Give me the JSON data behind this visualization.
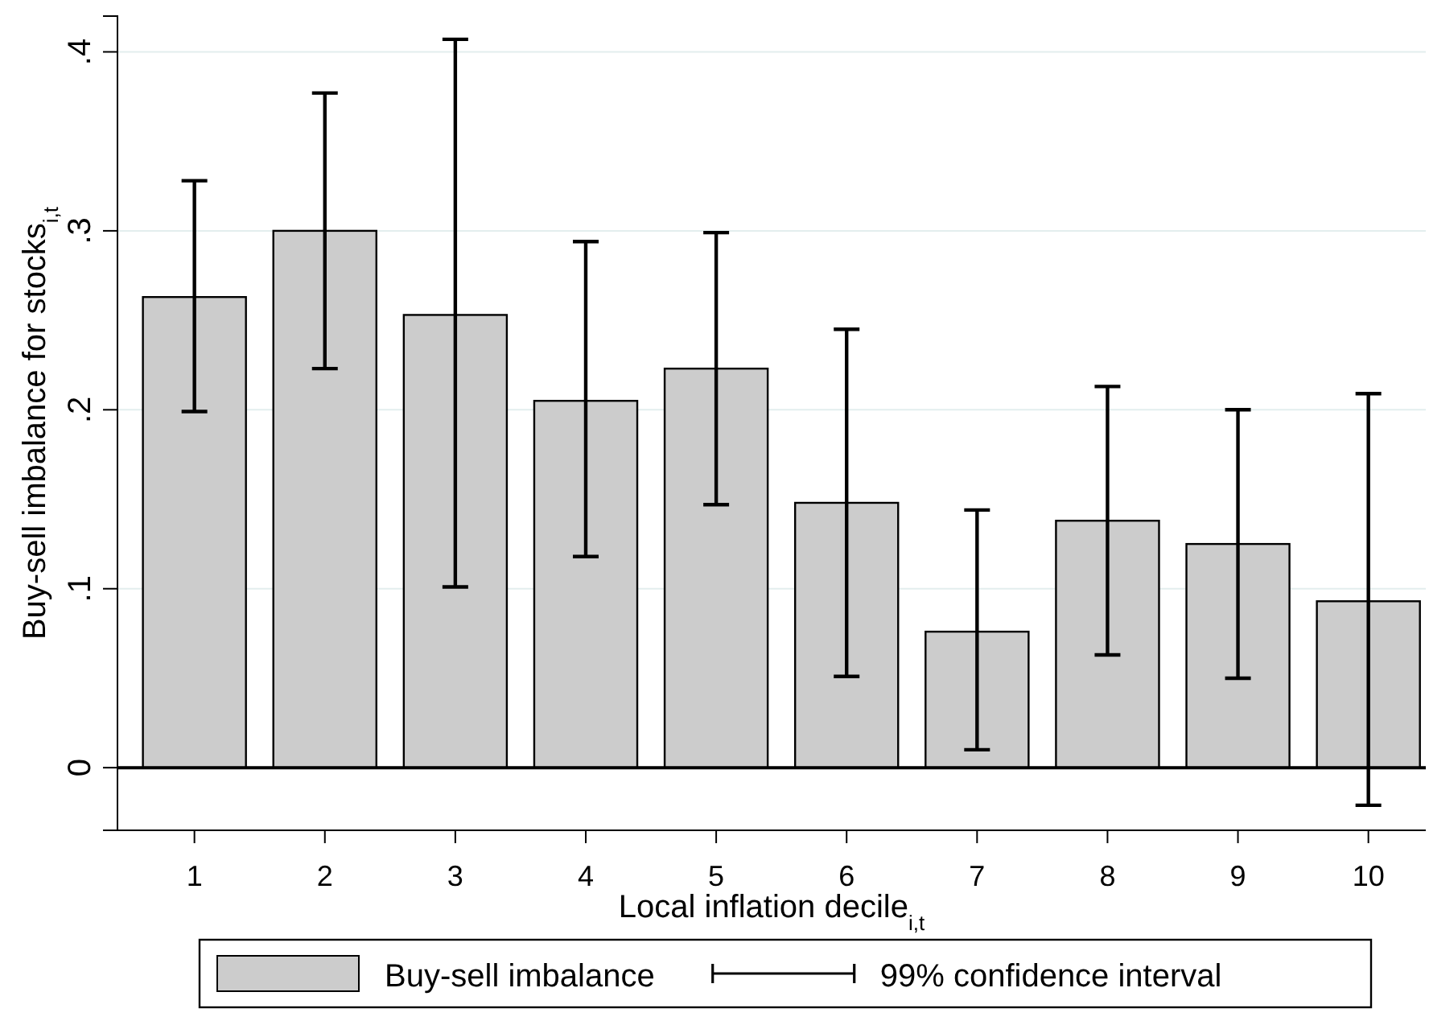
{
  "chart_data": {
    "type": "bar",
    "xlabel": "Local inflation decile$_{i,t}$",
    "ylabel": "Buy-sell imbalance for stocks$_{i,t}$",
    "categories": [
      "1",
      "2",
      "3",
      "4",
      "5",
      "6",
      "7",
      "8",
      "9",
      "10"
    ],
    "series": [
      {
        "name": "Buy-sell imbalance",
        "color": "#cccccc",
        "values": [
          0.263,
          0.3,
          0.253,
          0.205,
          0.223,
          0.148,
          0.076,
          0.138,
          0.125,
          0.093
        ],
        "errors": [
          [
            0.199,
            0.328
          ],
          [
            0.223,
            0.377
          ],
          [
            0.101,
            0.407
          ],
          [
            0.118,
            0.294
          ],
          [
            0.147,
            0.299
          ],
          [
            0.051,
            0.245
          ],
          [
            0.01,
            0.144
          ],
          [
            0.063,
            0.213
          ],
          [
            0.05,
            0.2
          ],
          [
            -0.021,
            0.209
          ]
        ]
      }
    ],
    "annotations": [
      "99% confidence interval"
    ],
    "ylim": [
      -0.035,
      0.42
    ],
    "yticks": [
      0,
      {
        "value": 0.1,
        "label": ".1"
      },
      {
        "value": 0.2,
        "label": ".2"
      },
      {
        "value": 0.3,
        "label": ".3"
      },
      {
        "value": 0.4,
        "label": ".4"
      }
    ],
    "grid": "y",
    "legend": "bottom"
  }
}
